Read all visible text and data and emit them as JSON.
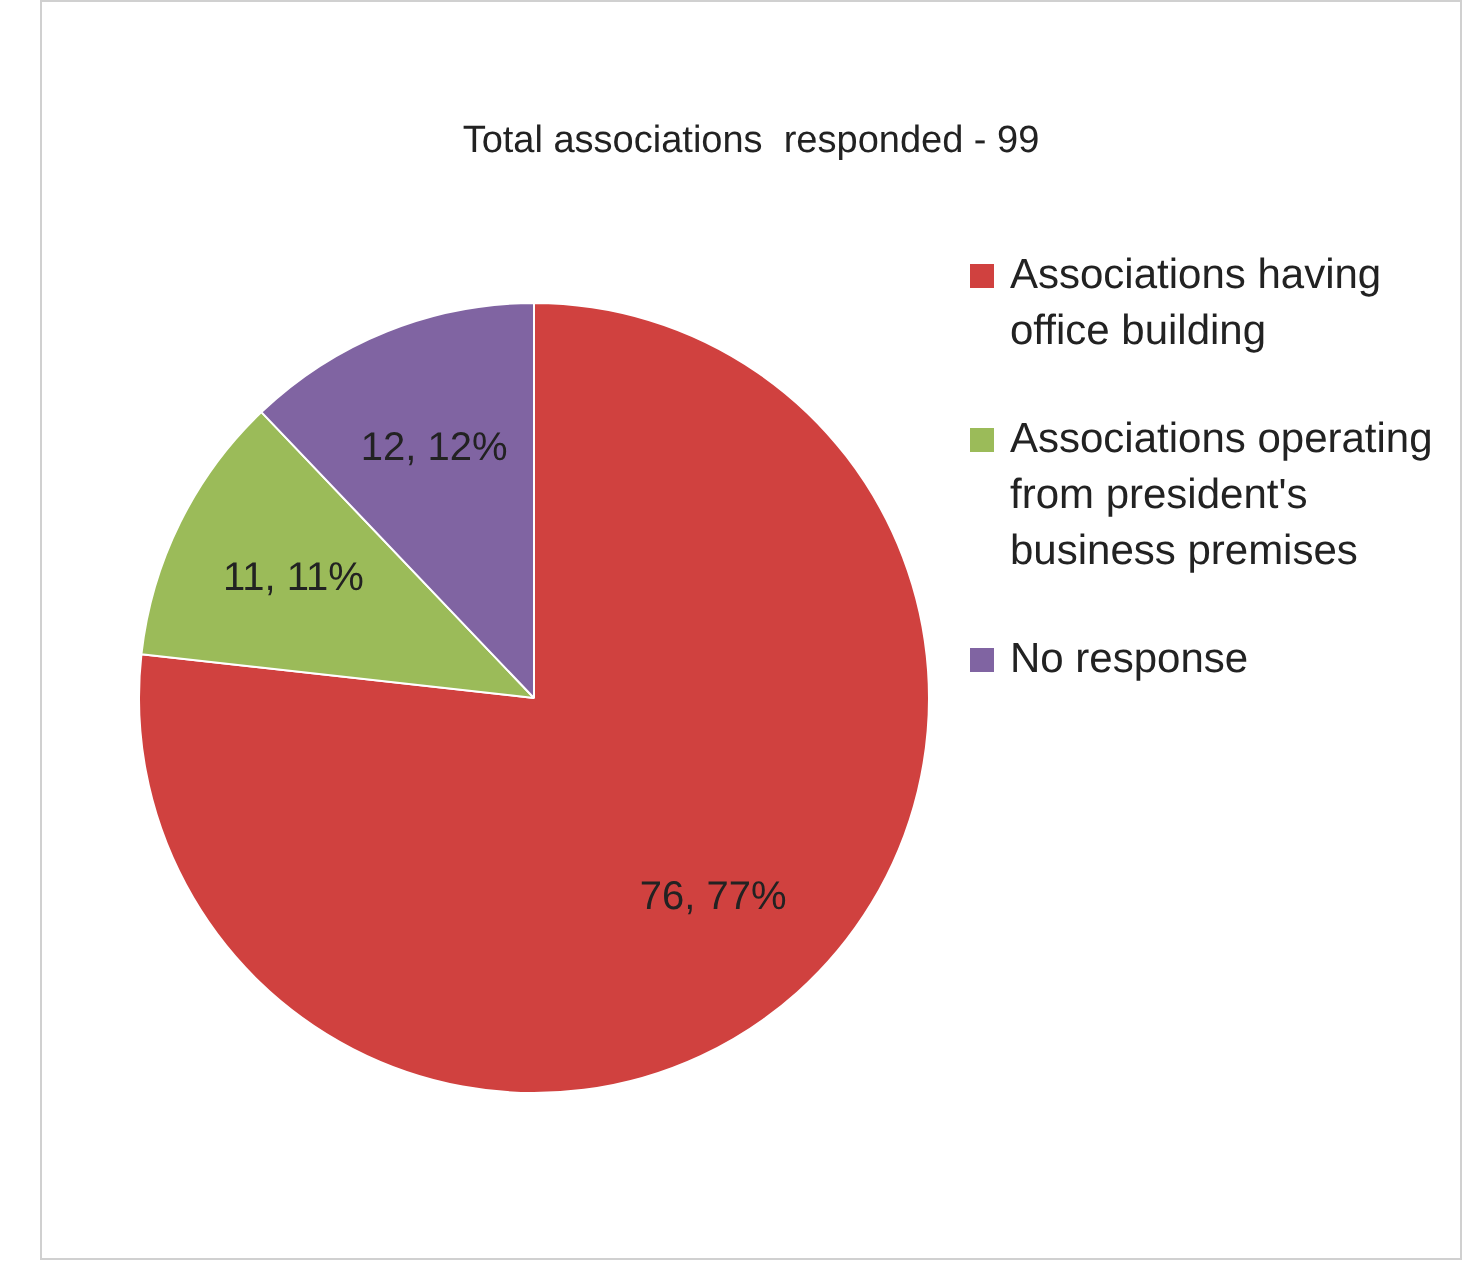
{
  "chart_data": {
    "type": "pie",
    "title": "Total associations  responded - 99",
    "categories": [
      "Associations having office building",
      "Associations operating from president's business premises",
      "No response"
    ],
    "values": [
      76,
      11,
      12
    ],
    "colors": [
      "#d0413f",
      "#9bbb59",
      "#8064a2"
    ],
    "value_labels": [
      "76, 77%",
      "11, 11%",
      "12, 12%"
    ],
    "legend": "right"
  }
}
